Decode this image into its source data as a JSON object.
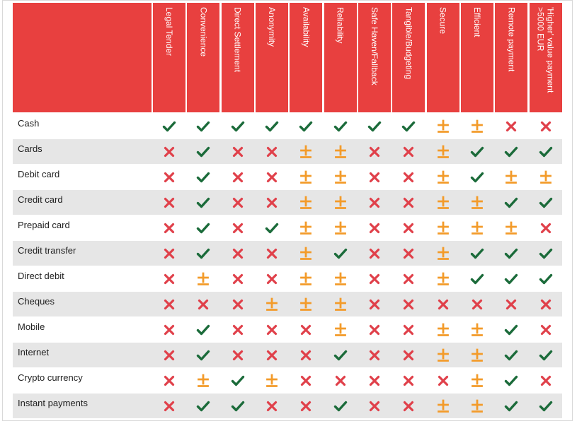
{
  "chart_data": {
    "type": "table",
    "columns": [
      "Legal Tender",
      "Convenience",
      "Direct Settlement",
      "Anonymity",
      "Availability",
      "Reliability",
      "Safe Haven/Fallback",
      "Tangible/Budgeting",
      "Secure",
      "Efficient",
      "Remote payment",
      "'Higher' value payment\n>5000 EUR"
    ],
    "rows": [
      {
        "label": "Cash",
        "values": [
          "yes",
          "yes",
          "yes",
          "yes",
          "yes",
          "yes",
          "yes",
          "yes",
          "partial",
          "partial",
          "no",
          "no"
        ]
      },
      {
        "label": "Cards",
        "values": [
          "no",
          "yes",
          "no",
          "no",
          "partial",
          "partial",
          "no",
          "no",
          "partial",
          "yes",
          "yes",
          "yes"
        ]
      },
      {
        "label": "Debit card",
        "values": [
          "no",
          "yes",
          "no",
          "no",
          "partial",
          "partial",
          "no",
          "no",
          "partial",
          "yes",
          "partial",
          "partial"
        ]
      },
      {
        "label": "Credit card",
        "values": [
          "no",
          "yes",
          "no",
          "no",
          "partial",
          "partial",
          "no",
          "no",
          "partial",
          "partial",
          "yes",
          "yes"
        ]
      },
      {
        "label": "Prepaid card",
        "values": [
          "no",
          "yes",
          "no",
          "yes",
          "partial",
          "partial",
          "no",
          "no",
          "partial",
          "partial",
          "partial",
          "no"
        ]
      },
      {
        "label": "Credit transfer",
        "values": [
          "no",
          "yes",
          "no",
          "no",
          "partial",
          "yes",
          "no",
          "no",
          "partial",
          "yes",
          "yes",
          "yes"
        ]
      },
      {
        "label": "Direct debit",
        "values": [
          "no",
          "partial",
          "no",
          "no",
          "partial",
          "partial",
          "no",
          "no",
          "partial",
          "yes",
          "yes",
          "yes"
        ]
      },
      {
        "label": "Cheques",
        "values": [
          "no",
          "no",
          "no",
          "partial",
          "partial",
          "partial",
          "no",
          "no",
          "no",
          "no",
          "no",
          "no"
        ]
      },
      {
        "label": "Mobile",
        "values": [
          "no",
          "yes",
          "no",
          "no",
          "no",
          "partial",
          "no",
          "no",
          "partial",
          "partial",
          "yes",
          "no"
        ]
      },
      {
        "label": "Internet",
        "values": [
          "no",
          "yes",
          "no",
          "no",
          "no",
          "yes",
          "no",
          "no",
          "partial",
          "partial",
          "yes",
          "yes"
        ]
      },
      {
        "label": "Crypto currency",
        "values": [
          "no",
          "partial",
          "yes",
          "partial",
          "no",
          "no",
          "no",
          "no",
          "no",
          "partial",
          "yes",
          "no"
        ]
      },
      {
        "label": "Instant payments",
        "values": [
          "no",
          "yes",
          "yes",
          "no",
          "no",
          "yes",
          "no",
          "no",
          "partial",
          "partial",
          "yes",
          "yes"
        ]
      }
    ]
  },
  "colors": {
    "header_bg": "#e8403f",
    "header_text": "#ffffff",
    "yes": "#1b6b3a",
    "partial": "#f39b2a",
    "no": "#e0404a",
    "alt_row": "#e6e6e6"
  },
  "icons": {
    "yes": "check-icon",
    "partial": "plus-minus-icon",
    "no": "cross-icon"
  }
}
